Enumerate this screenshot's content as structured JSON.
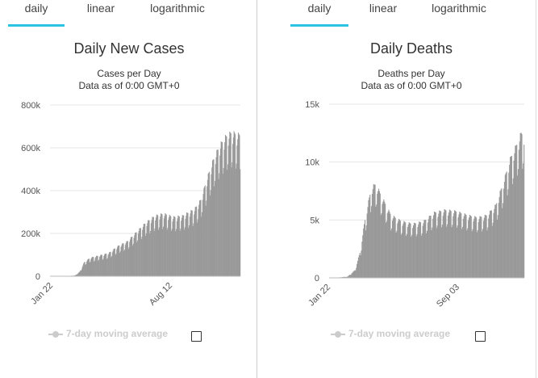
{
  "tabs": [
    "daily",
    "linear",
    "logarithmic"
  ],
  "active_tab": "daily",
  "legend_label": "7-day moving average",
  "colors": {
    "bar": "#999999",
    "grid": "#e6e6e6",
    "tab_active": "#2bc4e2"
  },
  "left": {
    "title": "Daily New Cases",
    "subtitle_1": "Cases per Day",
    "subtitle_2": "Data as of 0:00 GMT+0"
  },
  "right": {
    "title": "Daily Deaths",
    "subtitle_1": "Deaths per Day",
    "subtitle_2": "Data as of 0:00 GMT+0"
  },
  "chart_data": [
    {
      "type": "bar",
      "title": "Daily New Cases",
      "subtitle": "Cases per Day",
      "ylim": [
        0,
        800000
      ],
      "yticks": [
        "0",
        "200k",
        "400k",
        "600k",
        "800k"
      ],
      "xticks": [
        "Jan 22",
        "Aug 12"
      ],
      "series": [
        {
          "name": "",
          "checkpoints": [
            {
              "day": 0,
              "value": 0
            },
            {
              "day": 15,
              "value": 200
            },
            {
              "day": 30,
              "value": 1500
            },
            {
              "day": 40,
              "value": 3000
            },
            {
              "day": 48,
              "value": 20000
            },
            {
              "day": 55,
              "value": 60000
            },
            {
              "day": 65,
              "value": 80000
            },
            {
              "day": 80,
              "value": 90000
            },
            {
              "day": 95,
              "value": 100000
            },
            {
              "day": 110,
              "value": 130000
            },
            {
              "day": 125,
              "value": 150000
            },
            {
              "day": 140,
              "value": 190000
            },
            {
              "day": 155,
              "value": 230000
            },
            {
              "day": 170,
              "value": 260000
            },
            {
              "day": 185,
              "value": 270000
            },
            {
              "day": 200,
              "value": 255000
            },
            {
              "day": 215,
              "value": 260000
            },
            {
              "day": 225,
              "value": 275000
            },
            {
              "day": 235,
              "value": 290000
            },
            {
              "day": 245,
              "value": 330000
            },
            {
              "day": 255,
              "value": 420000
            },
            {
              "day": 265,
              "value": 500000
            },
            {
              "day": 275,
              "value": 560000
            },
            {
              "day": 285,
              "value": 600000
            },
            {
              "day": 295,
              "value": 620000
            },
            {
              "day": 305,
              "value": 610000
            }
          ],
          "days": 310
        }
      ]
    },
    {
      "type": "bar",
      "title": "Daily Deaths",
      "subtitle": "Deaths per Day",
      "ylim": [
        0,
        15000
      ],
      "yticks": [
        "0",
        "5k",
        "10k",
        "15k"
      ],
      "xticks": [
        "Jan 22",
        "Sep 03"
      ],
      "series": [
        {
          "name": "",
          "checkpoints": [
            {
              "day": 0,
              "value": 0
            },
            {
              "day": 10,
              "value": 20
            },
            {
              "day": 25,
              "value": 100
            },
            {
              "day": 35,
              "value": 600
            },
            {
              "day": 42,
              "value": 2000
            },
            {
              "day": 50,
              "value": 5000
            },
            {
              "day": 58,
              "value": 7200
            },
            {
              "day": 64,
              "value": 7500
            },
            {
              "day": 72,
              "value": 6500
            },
            {
              "day": 85,
              "value": 5000
            },
            {
              "day": 100,
              "value": 4500
            },
            {
              "day": 115,
              "value": 4300
            },
            {
              "day": 130,
              "value": 4500
            },
            {
              "day": 145,
              "value": 5200
            },
            {
              "day": 160,
              "value": 5400
            },
            {
              "day": 175,
              "value": 5300
            },
            {
              "day": 190,
              "value": 5000
            },
            {
              "day": 205,
              "value": 4800
            },
            {
              "day": 218,
              "value": 5000
            },
            {
              "day": 230,
              "value": 5800
            },
            {
              "day": 240,
              "value": 7500
            },
            {
              "day": 250,
              "value": 9500
            },
            {
              "day": 258,
              "value": 10500
            },
            {
              "day": 265,
              "value": 11500
            }
          ],
          "days": 270
        }
      ]
    }
  ]
}
